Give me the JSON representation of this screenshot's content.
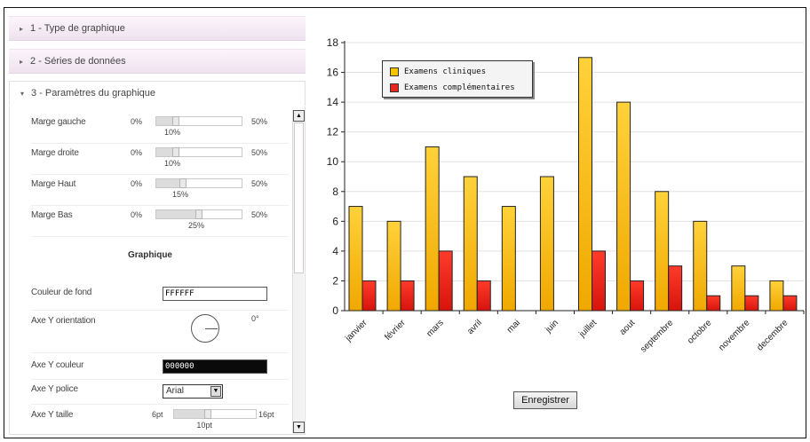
{
  "accordion": {
    "sections": [
      {
        "label": "1 - Type de graphique",
        "open": false
      },
      {
        "label": "2 - Séries de données",
        "open": false
      },
      {
        "label": "3 - Paramètres du graphique",
        "open": true
      }
    ]
  },
  "settings": {
    "margins": [
      {
        "label": "Marge gauche",
        "min": "0%",
        "max": "50%",
        "value_label": "10%",
        "fraction": 0.2
      },
      {
        "label": "Marge droite",
        "min": "0%",
        "max": "50%",
        "value_label": "10%",
        "fraction": 0.2
      },
      {
        "label": "Marge Haut",
        "min": "0%",
        "max": "50%",
        "value_label": "15%",
        "fraction": 0.3
      },
      {
        "label": "Marge Bas",
        "min": "0%",
        "max": "50%",
        "value_label": "25%",
        "fraction": 0.5
      }
    ],
    "graph_section_title": "Graphique",
    "background_color": {
      "label": "Couleur de fond",
      "value": "FFFFFF"
    },
    "y_orientation": {
      "label": "Axe Y orientation",
      "value": "0°"
    },
    "y_color": {
      "label": "Axe Y couleur",
      "value": "000000"
    },
    "y_font": {
      "label": "Axe Y police",
      "value": "Arial"
    },
    "y_size": {
      "label": "Axe Y taille",
      "min": "6pt",
      "max": "16pt",
      "value_label": "10pt",
      "fraction": 0.4
    }
  },
  "buttons": {
    "save": "Enregistrer"
  },
  "icons": {
    "collapsed_arrow": "triangle-right-icon",
    "expanded_arrow": "triangle-down-icon",
    "scroll_up": "arrow-up-icon",
    "scroll_down": "arrow-down-icon",
    "select_open": "chevron-down-icon"
  },
  "chart_data": {
    "type": "bar",
    "categories": [
      "janvier",
      "février",
      "mars",
      "avril",
      "mai",
      "juin",
      "juillet",
      "aout",
      "septembre",
      "octobre",
      "novembre",
      "decembre"
    ],
    "series": [
      {
        "name": "Examens cliniques",
        "color": "#f5c400",
        "values": [
          7,
          6,
          11,
          9,
          7,
          9,
          17,
          14,
          8,
          6,
          3,
          2
        ]
      },
      {
        "name": "Examens complémentaires",
        "color": "#e8271f",
        "values": [
          2,
          2,
          4,
          2,
          0,
          0,
          4,
          2,
          3,
          1,
          1,
          1
        ]
      }
    ],
    "ylim": [
      0,
      18
    ],
    "yticks": [
      0,
      2,
      4,
      6,
      8,
      10,
      12,
      14,
      16,
      18
    ],
    "grid": true,
    "legend": "top-left"
  }
}
